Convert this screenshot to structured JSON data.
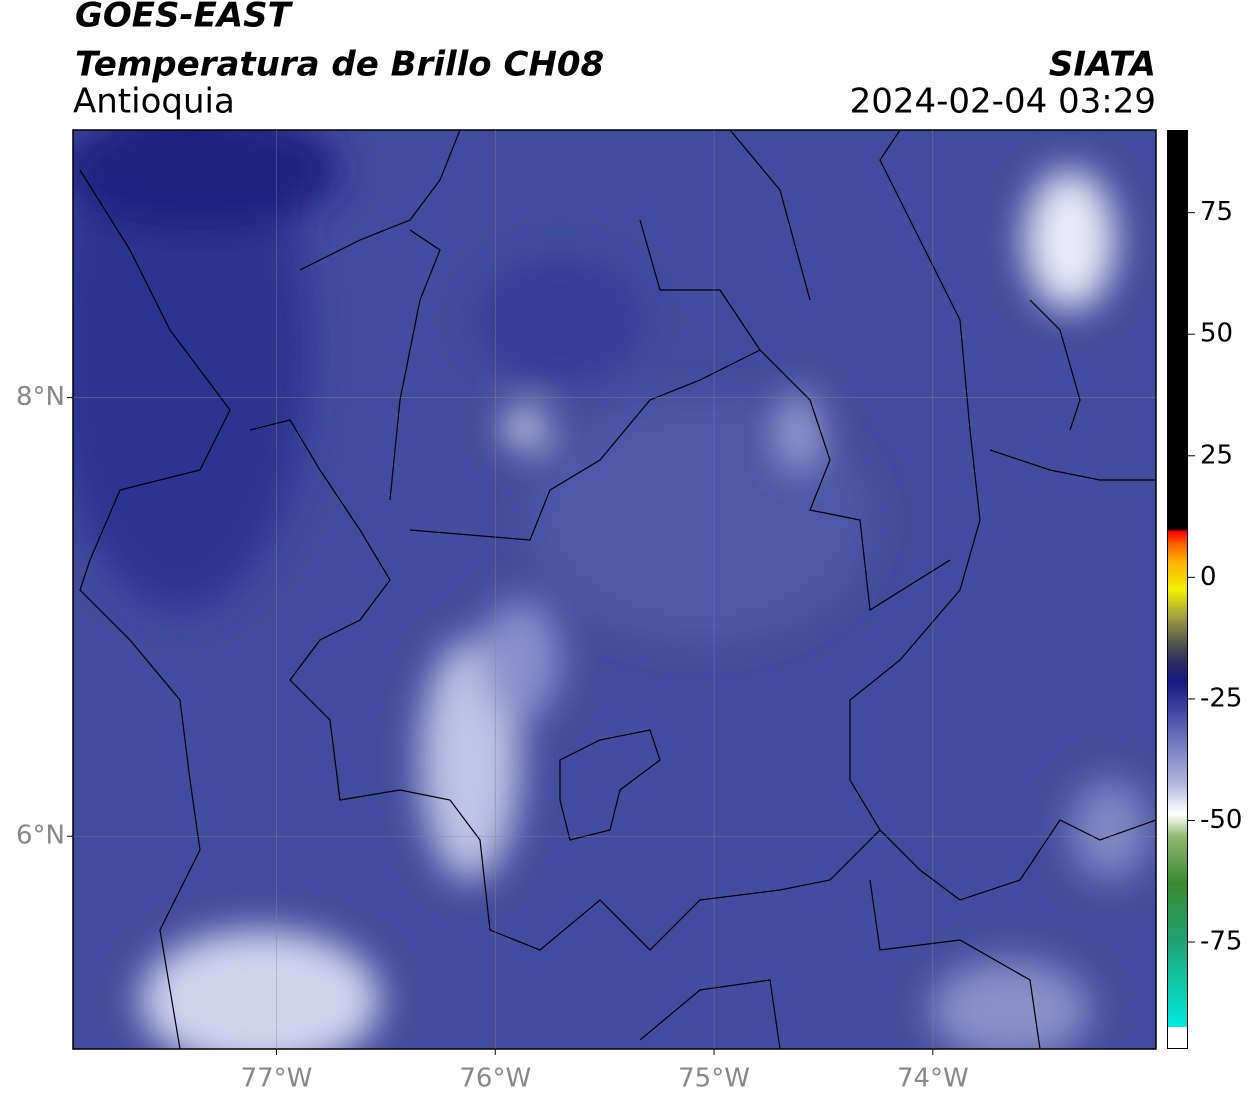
{
  "header": {
    "title": "GOES-EAST",
    "subtitle": "Temperatura de Brillo CH08",
    "region": "Antioquia",
    "source": "SIATA",
    "datetime": "2024-02-04 03:29"
  },
  "map": {
    "xlim": [
      -77.93,
      -72.98
    ],
    "ylim": [
      5.03,
      9.22
    ],
    "xticks": [
      {
        "value": -77,
        "label": "77°W"
      },
      {
        "value": -76,
        "label": "76°W"
      },
      {
        "value": -75,
        "label": "75°W"
      },
      {
        "value": -74,
        "label": "74°W"
      }
    ],
    "yticks": [
      {
        "value": 8,
        "label": "8°N"
      },
      {
        "value": 6,
        "label": "6°N"
      }
    ],
    "grid": true
  },
  "colorbar": {
    "ylim": [
      -97,
      92
    ],
    "yticks": [
      75,
      50,
      25,
      0,
      -25,
      -50,
      -75
    ]
  }
}
